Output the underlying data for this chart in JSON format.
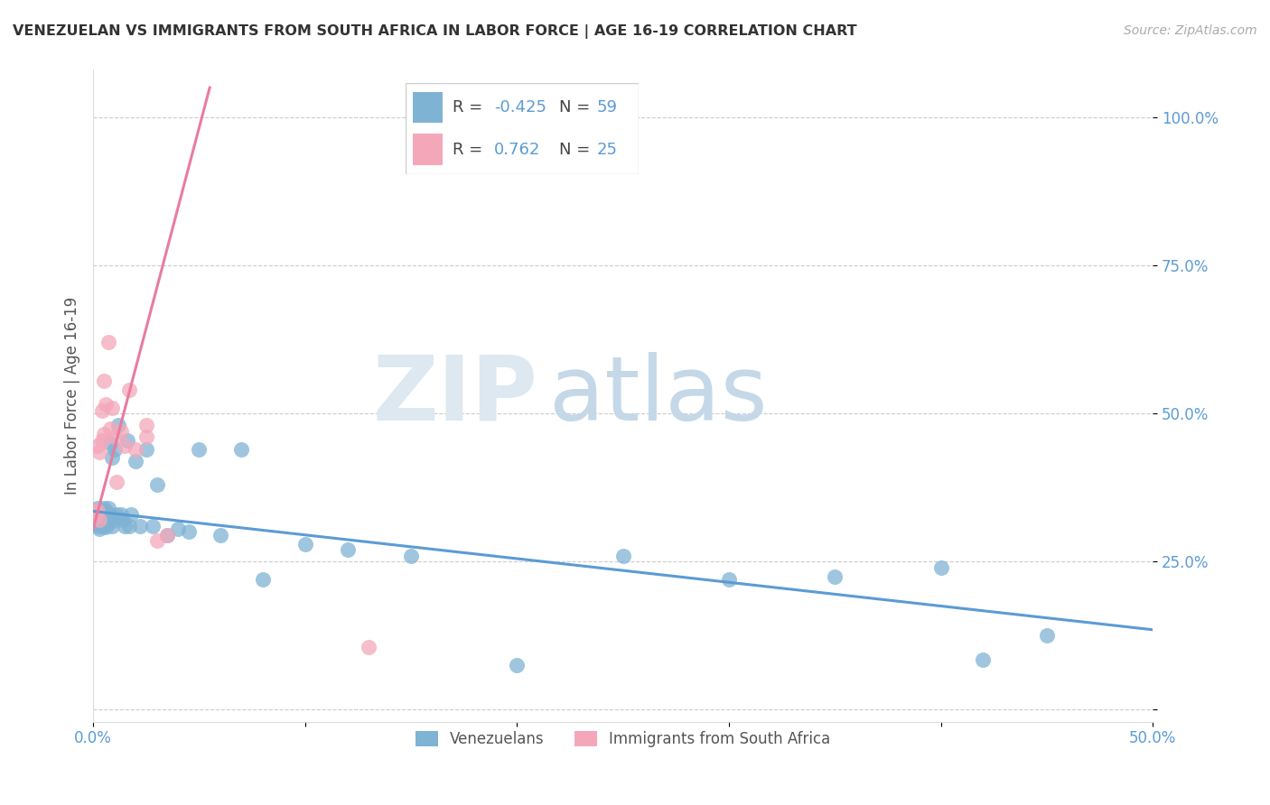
{
  "title": "VENEZUELAN VS IMMIGRANTS FROM SOUTH AFRICA IN LABOR FORCE | AGE 16-19 CORRELATION CHART",
  "source": "Source: ZipAtlas.com",
  "ylabel": "In Labor Force | Age 16-19",
  "xlim": [
    0.0,
    0.5
  ],
  "ylim": [
    -0.02,
    1.08
  ],
  "yticks": [
    0.0,
    0.25,
    0.5,
    0.75,
    1.0
  ],
  "ytick_labels": [
    "",
    "25.0%",
    "50.0%",
    "75.0%",
    "100.0%"
  ],
  "xticks": [
    0.0,
    0.1,
    0.2,
    0.3,
    0.4,
    0.5
  ],
  "xtick_labels": [
    "0.0%",
    "",
    "",
    "",
    "",
    "50.0%"
  ],
  "venezuelan_color": "#7fb3d3",
  "south_africa_color": "#f4a7b9",
  "trend_venezuela_color": "#5b9bd5",
  "trend_south_africa_color": "#e87ca0",
  "R_venezuela": -0.425,
  "N_venezuela": 59,
  "R_south_africa": 0.762,
  "N_south_africa": 25,
  "background_color": "#ffffff",
  "grid_color": "#cccccc",
  "tick_color": "#5b9bd5",
  "ven_trend_x0": 0.0,
  "ven_trend_x1": 0.5,
  "ven_trend_y0": 0.335,
  "ven_trend_y1": 0.135,
  "sa_trend_x0": 0.0,
  "sa_trend_x1": 0.055,
  "sa_trend_y0": 0.305,
  "sa_trend_y1": 1.05,
  "venezuelan_x": [
    0.001,
    0.001,
    0.001,
    0.001,
    0.002,
    0.002,
    0.002,
    0.002,
    0.003,
    0.003,
    0.003,
    0.003,
    0.004,
    0.004,
    0.004,
    0.005,
    0.005,
    0.005,
    0.006,
    0.006,
    0.006,
    0.007,
    0.007,
    0.008,
    0.008,
    0.009,
    0.009,
    0.01,
    0.01,
    0.011,
    0.012,
    0.013,
    0.014,
    0.015,
    0.016,
    0.017,
    0.018,
    0.02,
    0.022,
    0.025,
    0.028,
    0.03,
    0.035,
    0.04,
    0.045,
    0.05,
    0.06,
    0.07,
    0.08,
    0.1,
    0.12,
    0.15,
    0.2,
    0.25,
    0.3,
    0.35,
    0.4,
    0.42,
    0.45
  ],
  "venezuelan_y": [
    0.335,
    0.33,
    0.325,
    0.315,
    0.34,
    0.33,
    0.32,
    0.31,
    0.335,
    0.325,
    0.315,
    0.305,
    0.33,
    0.32,
    0.31,
    0.34,
    0.325,
    0.31,
    0.335,
    0.32,
    0.308,
    0.34,
    0.315,
    0.45,
    0.33,
    0.425,
    0.31,
    0.44,
    0.32,
    0.33,
    0.48,
    0.33,
    0.32,
    0.31,
    0.455,
    0.31,
    0.33,
    0.42,
    0.31,
    0.44,
    0.31,
    0.38,
    0.295,
    0.305,
    0.3,
    0.44,
    0.295,
    0.44,
    0.22,
    0.28,
    0.27,
    0.26,
    0.075,
    0.26,
    0.22,
    0.225,
    0.24,
    0.085,
    0.125
  ],
  "south_africa_x": [
    0.001,
    0.001,
    0.002,
    0.002,
    0.003,
    0.003,
    0.004,
    0.004,
    0.005,
    0.005,
    0.006,
    0.007,
    0.008,
    0.009,
    0.01,
    0.011,
    0.013,
    0.015,
    0.017,
    0.02,
    0.025,
    0.025,
    0.03,
    0.035,
    0.13
  ],
  "south_africa_y": [
    0.335,
    0.325,
    0.445,
    0.335,
    0.435,
    0.32,
    0.505,
    0.455,
    0.555,
    0.465,
    0.515,
    0.62,
    0.475,
    0.51,
    0.46,
    0.385,
    0.47,
    0.445,
    0.54,
    0.44,
    0.48,
    0.46,
    0.285,
    0.295,
    0.105
  ]
}
